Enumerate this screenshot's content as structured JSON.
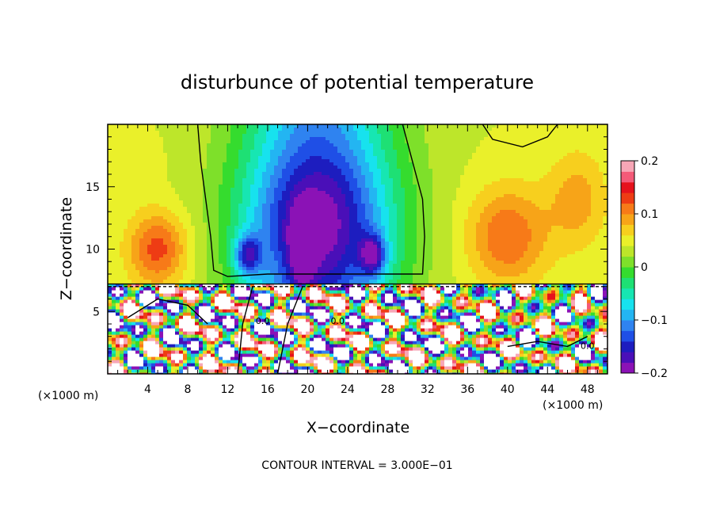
{
  "chart_data": {
    "type": "heatmap",
    "title": "disturbunce of potential temperature",
    "xlabel": "X−coordinate",
    "ylabel": "Z−coordinate",
    "x_unit_label": "(×1000 m)",
    "y_unit_label": "(×1000 m)",
    "xlim": [
      0,
      50
    ],
    "ylim": [
      0,
      20
    ],
    "x_ticks": [
      4,
      8,
      12,
      16,
      20,
      24,
      28,
      32,
      36,
      40,
      44,
      48
    ],
    "y_ticks": [
      5,
      10,
      15
    ],
    "colorbar": {
      "range": [
        -0.2,
        0.2
      ],
      "ticks": [
        "0.2",
        "0.1",
        "0",
        "−0.1",
        "−0.2"
      ],
      "colors": [
        "#8b12b6",
        "#4a0fb8",
        "#1d1dbf",
        "#1f4fe6",
        "#2f83f0",
        "#23b5f2",
        "#17e2ee",
        "#17e6b2",
        "#1ee074",
        "#35dc2e",
        "#7ee02a",
        "#bde62a",
        "#eaf02a",
        "#f7cf1e",
        "#f7a418",
        "#f77a18",
        "#ee3c14",
        "#e6121c",
        "#f45a78",
        "#f7a6b6"
      ]
    },
    "grid": false,
    "annotation": "CONTOUR INTERVAL = 3.000E−01",
    "contour_labels": [
      "0.0",
      "0.0",
      "0.0",
      "0.0"
    ]
  }
}
